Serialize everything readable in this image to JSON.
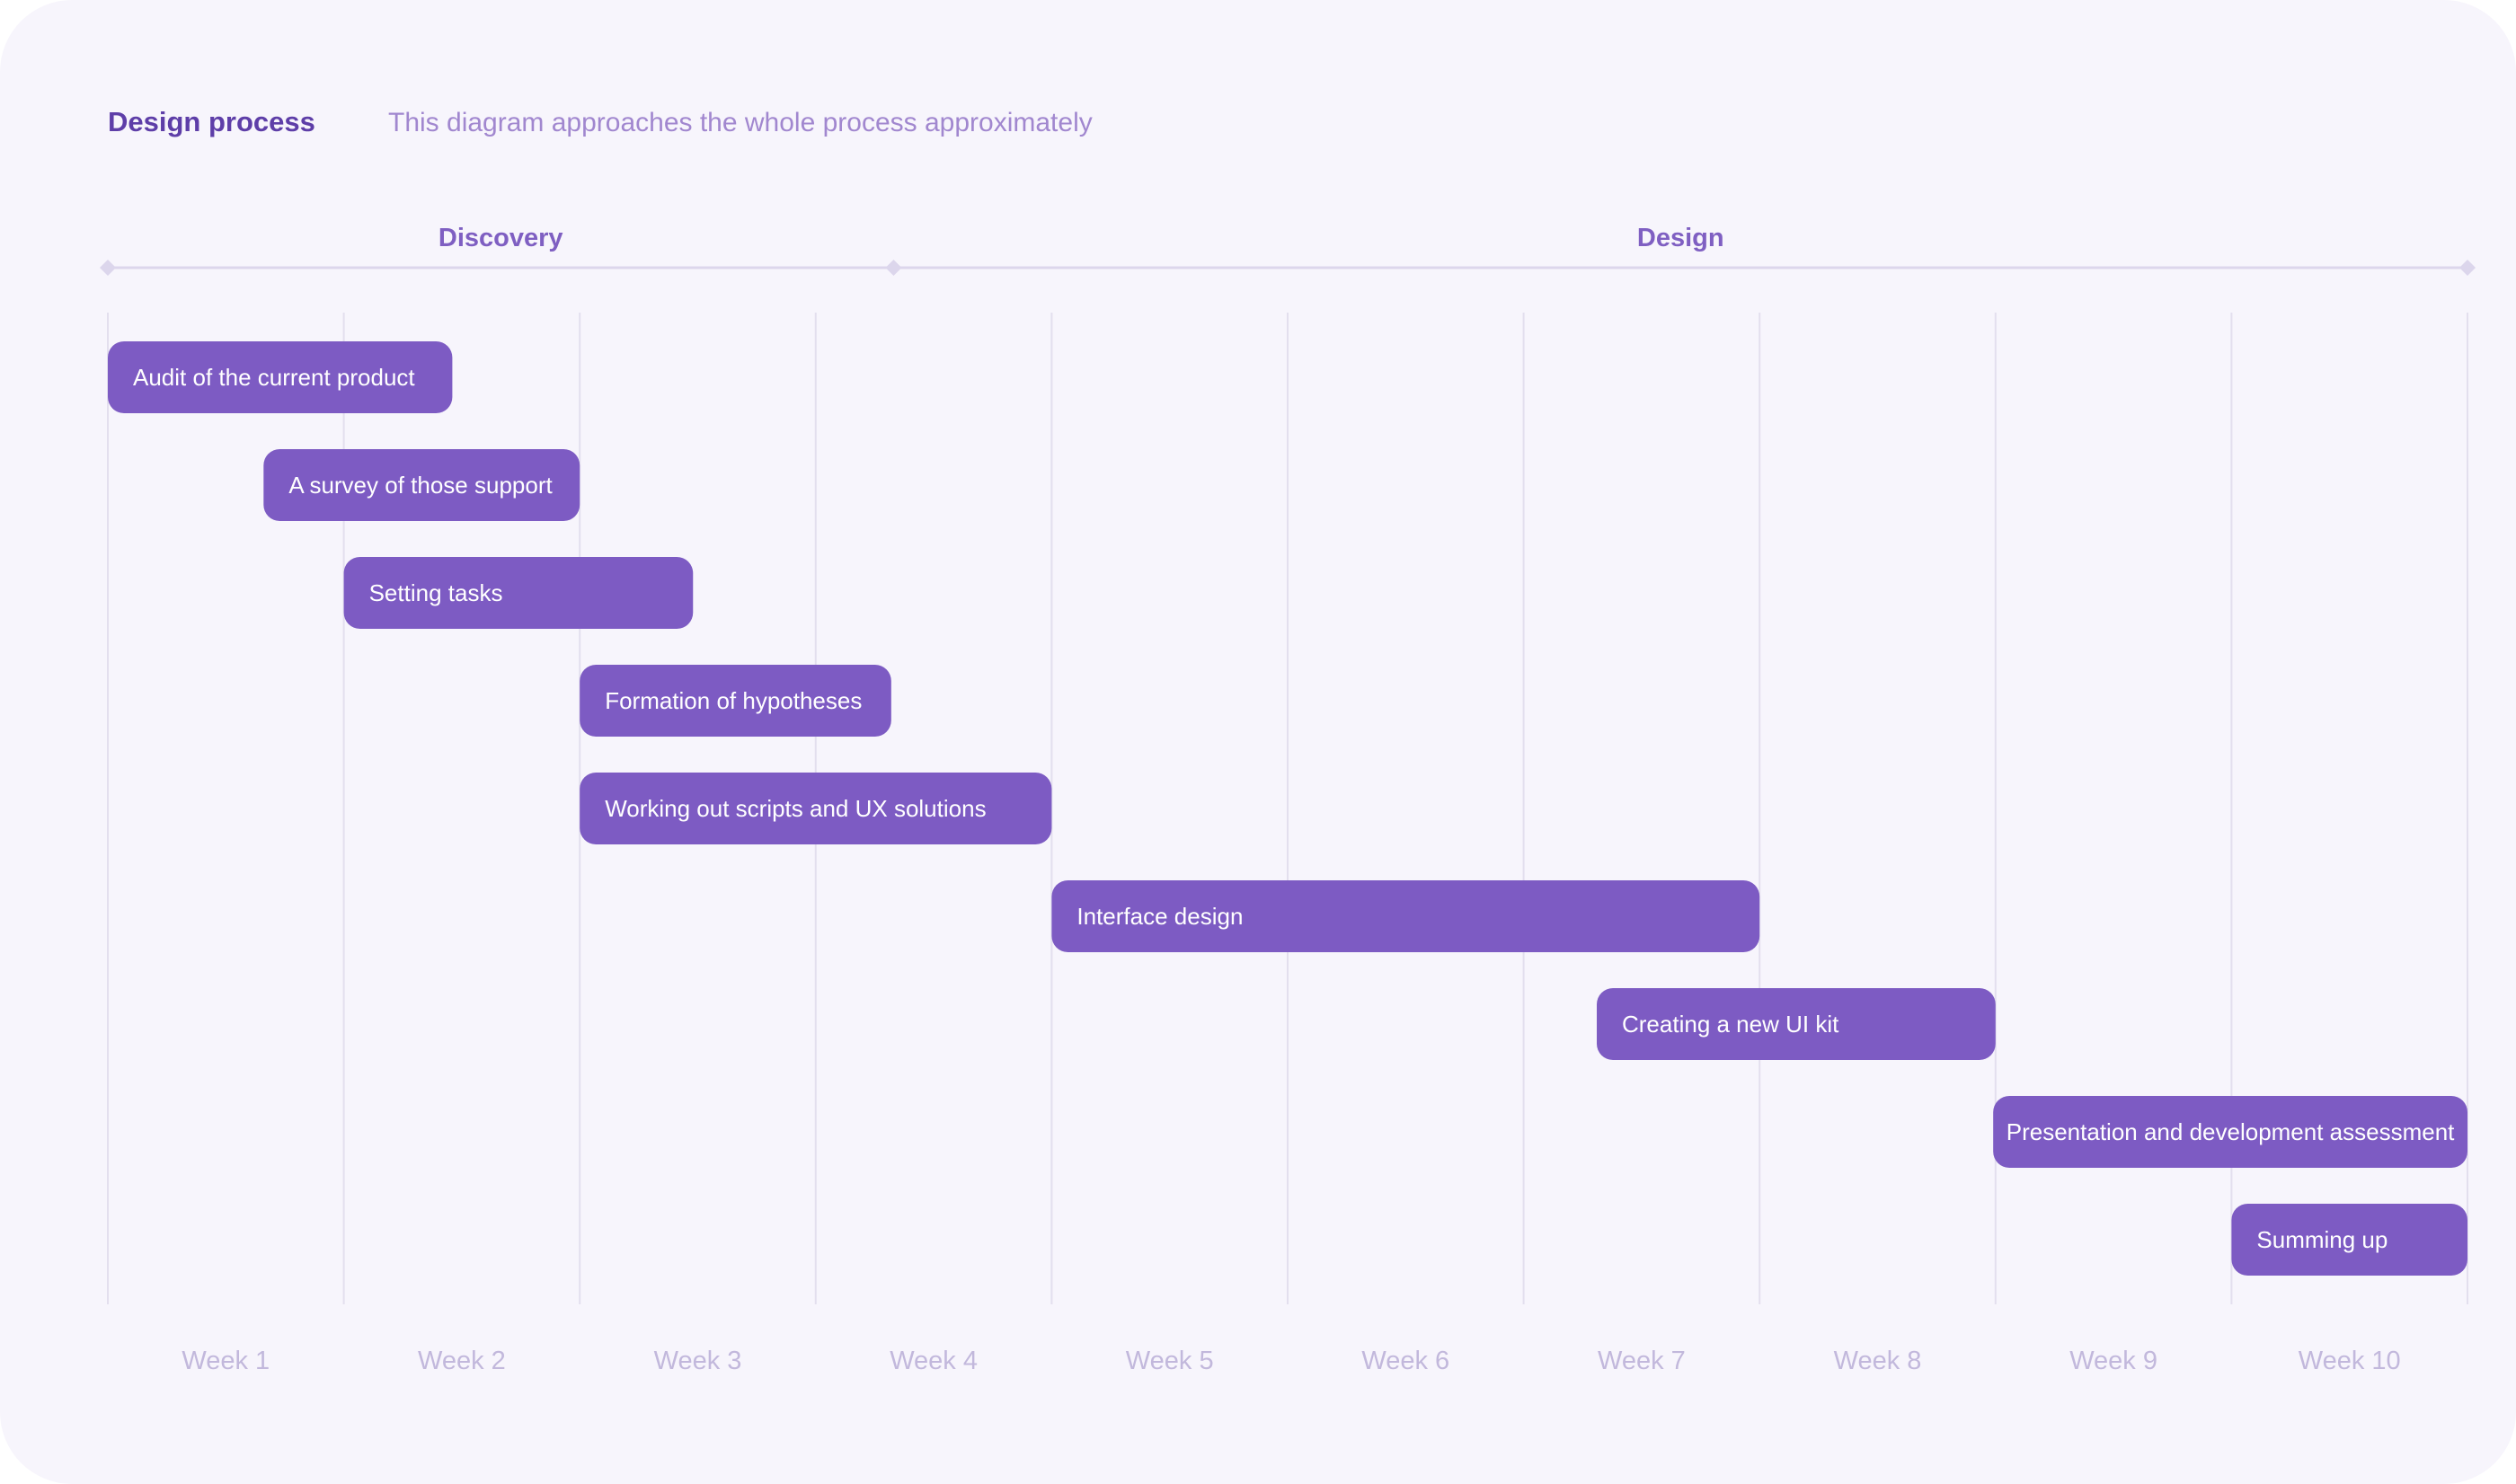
{
  "header": {
    "title": "Design process",
    "subtitle": "This diagram approaches the whole process approximately"
  },
  "colors": {
    "background": "#f7f5fc",
    "bar": "#7d5bc3",
    "title": "#5e3ea8",
    "subtitle": "#a187cf",
    "phase_label": "#7f5fc2",
    "phase_line": "#dcd6ec",
    "grid": "#e3dfee",
    "week_label": "#c2b8dc"
  },
  "chart_data": {
    "type": "gantt",
    "x_unit": "week",
    "xlim": [
      0,
      10
    ],
    "weeks": [
      "Week 1",
      "Week 2",
      "Week 3",
      "Week 4",
      "Week 5",
      "Week 6",
      "Week 7",
      "Week 8",
      "Week 9",
      "Week 10"
    ],
    "phases": [
      {
        "name": "Discovery",
        "start": 0,
        "end": 3.33
      },
      {
        "name": "Design",
        "start": 3.33,
        "end": 10
      }
    ],
    "tasks": [
      {
        "name": "Audit of the current product",
        "start": 0,
        "end": 1.46
      },
      {
        "name": "A survey of those support",
        "start": 0.66,
        "end": 2.0
      },
      {
        "name": "Setting tasks",
        "start": 1.0,
        "end": 2.48
      },
      {
        "name": "Formation of hypotheses",
        "start": 2.0,
        "end": 3.32
      },
      {
        "name": "Working out scripts and UX solutions",
        "start": 2.0,
        "end": 4.0
      },
      {
        "name": "Interface design",
        "start": 4.0,
        "end": 7.0
      },
      {
        "name": "Creating a new UI kit",
        "start": 6.31,
        "end": 8.0
      },
      {
        "name": "Presentation and development assessment",
        "start": 7.99,
        "end": 10.0
      },
      {
        "name": "Summing up",
        "start": 9.0,
        "end": 10.0
      }
    ]
  }
}
